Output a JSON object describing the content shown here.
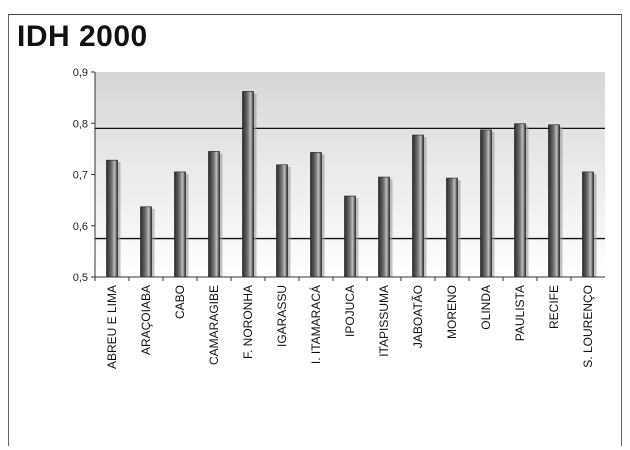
{
  "chart_data": {
    "type": "bar",
    "title": "IDH 2000",
    "xlabel": "",
    "ylabel": "",
    "ylim": [
      0.5,
      0.9
    ],
    "yticks": [
      "0,5",
      "0,6",
      "0,7",
      "0,8",
      "0,9"
    ],
    "yticks_values": [
      0.5,
      0.6,
      0.7,
      0.8,
      0.9
    ],
    "reference_lines": [
      0.79,
      0.575
    ],
    "grid": false,
    "legend": "none",
    "categories": [
      "ABREU E LIMA",
      "ARAÇOIABA",
      "CABO",
      "CAMARAGIBE",
      "F. NORONHA",
      "IGARASSU",
      "I. ITAMARACÁ",
      "IPOJUCA",
      "ITAPISSUMA",
      "JABOATÃO",
      "MORENO",
      "OLINDA",
      "PAULISTA",
      "RECIFE",
      "S. LOURENÇO"
    ],
    "values": [
      0.728,
      0.637,
      0.705,
      0.745,
      0.862,
      0.719,
      0.743,
      0.658,
      0.695,
      0.777,
      0.693,
      0.787,
      0.799,
      0.797,
      0.705
    ],
    "colors": {
      "bar_dark": "#2a2a2a",
      "bar_mid": "#6e6e6e",
      "bar_light": "#bdbdbd",
      "plot_top": "#d6d6d6",
      "plot_bottom": "#ffffff",
      "axis": "#333333"
    }
  }
}
